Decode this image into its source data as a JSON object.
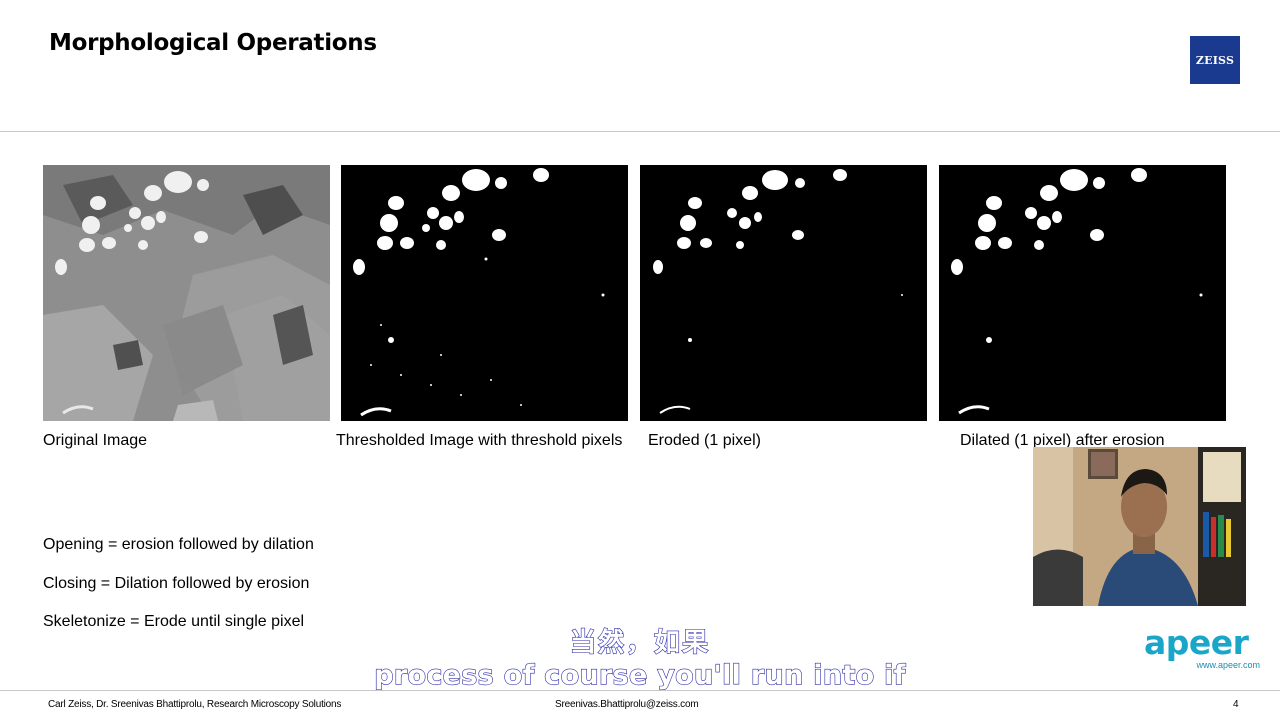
{
  "slide": {
    "title": "Morphological Operations",
    "logo_text": "ZEISS",
    "page_number": "4"
  },
  "images": [
    {
      "caption": "Original Image",
      "icon": "grayscale-micrograph-image"
    },
    {
      "caption": "Thresholded Image with threshold pixels",
      "icon": "binary-threshold-image"
    },
    {
      "caption": "Eroded (1 pixel)",
      "icon": "binary-eroded-image"
    },
    {
      "caption": "Dilated (1 pixel) after erosion",
      "icon": "binary-dilated-image"
    }
  ],
  "definitions": [
    "Opening = erosion followed by dilation",
    "Closing = Dilation followed by erosion",
    "Skeletonize = Erode until single pixel"
  ],
  "subtitles": {
    "chinese": "当然，如果",
    "english": "process of course you'll run into if"
  },
  "brand": {
    "apeer_word": "apeer",
    "apeer_url": "www.apeer.com"
  },
  "footer": {
    "left": "Carl Zeiss, Dr. Sreenivas Bhattiprolu, Research Microscopy Solutions",
    "center": "Sreenivas.Bhattiprolu@zeiss.com"
  },
  "colors": {
    "zeiss_blue": "#1a3a8f",
    "apeer_teal": "#1aa6c8",
    "subtitle_outline": "#2a2aa8"
  }
}
